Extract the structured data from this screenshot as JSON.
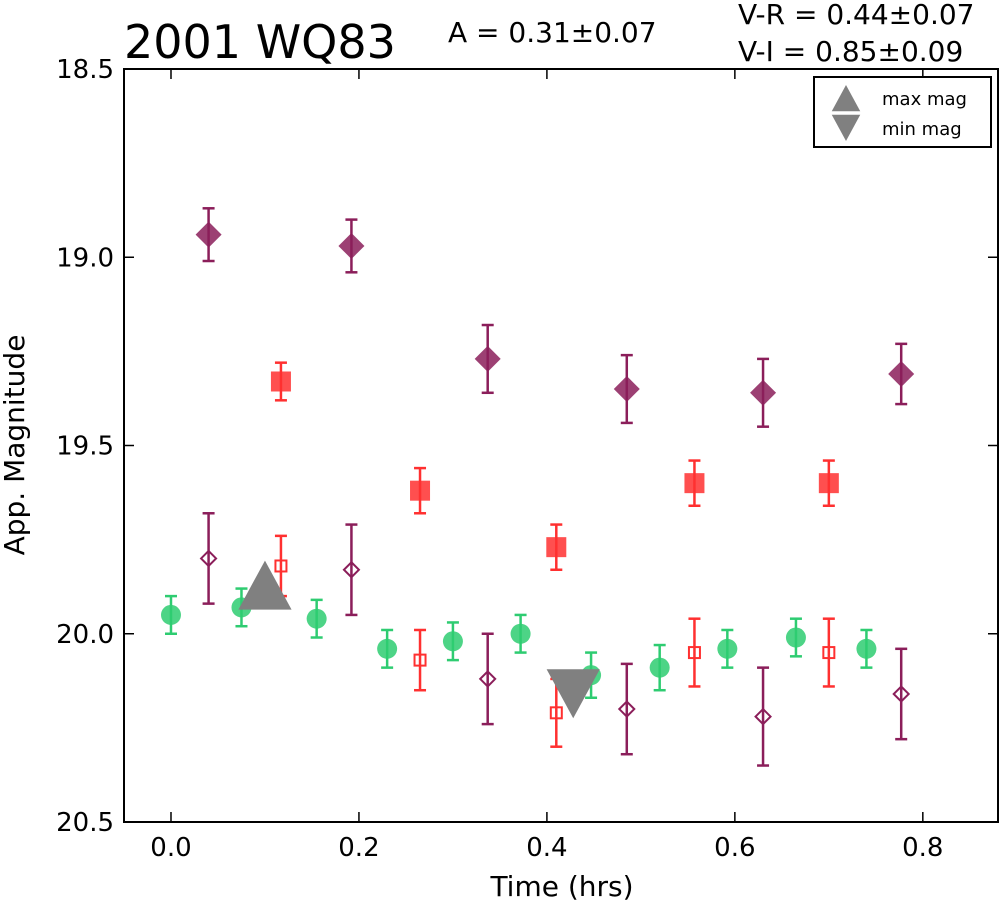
{
  "chart_data": {
    "type": "scatter",
    "title": "2001 WQ83",
    "annotations": {
      "amplitude": "A  = 0.31±0.07",
      "v_r": "V-R = 0.44±0.07",
      "v_i": "V-I  = 0.85±0.09"
    },
    "xlabel": "Time (hrs)",
    "ylabel": "App. Magnitude",
    "xlim": [
      -0.05,
      0.88
    ],
    "ylim": [
      18.5,
      20.5
    ],
    "y_inverted": true,
    "x_ticks": [
      "0.0",
      "0.2",
      "0.4",
      "0.6",
      "0.8"
    ],
    "x_tick_values": [
      0.0,
      0.2,
      0.4,
      0.6,
      0.8
    ],
    "y_ticks": [
      "18.5",
      "19.0",
      "19.5",
      "20.0",
      "20.5"
    ],
    "y_tick_values": [
      18.5,
      19.0,
      19.5,
      20.0,
      20.5
    ],
    "legend": {
      "placement": "top-right",
      "entries": [
        {
          "label": "max mag",
          "marker": "triangle-up",
          "color": "#808080"
        },
        {
          "label": "min mag",
          "marker": "triangle-down",
          "color": "#808080"
        }
      ]
    },
    "series": [
      {
        "marker": "circle",
        "filled": true,
        "color": "#2ecc71",
        "points": [
          {
            "x": 0.0,
            "y": 19.95,
            "err": 0.05
          },
          {
            "x": 0.075,
            "y": 19.93,
            "err": 0.05
          },
          {
            "x": 0.155,
            "y": 19.96,
            "err": 0.05
          },
          {
            "x": 0.23,
            "y": 20.04,
            "err": 0.05
          },
          {
            "x": 0.3,
            "y": 20.02,
            "err": 0.05
          },
          {
            "x": 0.372,
            "y": 20.0,
            "err": 0.05
          },
          {
            "x": 0.447,
            "y": 20.11,
            "err": 0.06
          },
          {
            "x": 0.52,
            "y": 20.09,
            "err": 0.06
          },
          {
            "x": 0.592,
            "y": 20.04,
            "err": 0.05
          },
          {
            "x": 0.665,
            "y": 20.01,
            "err": 0.05
          },
          {
            "x": 0.74,
            "y": 20.04,
            "err": 0.05
          }
        ]
      },
      {
        "marker": "square",
        "filled": true,
        "color": "#ff3030",
        "points": [
          {
            "x": 0.117,
            "y": 19.33,
            "err": 0.05
          },
          {
            "x": 0.265,
            "y": 19.62,
            "err": 0.06
          },
          {
            "x": 0.41,
            "y": 19.77,
            "err": 0.06
          },
          {
            "x": 0.557,
            "y": 19.6,
            "err": 0.06
          },
          {
            "x": 0.7,
            "y": 19.6,
            "err": 0.06
          }
        ]
      },
      {
        "marker": "diamond",
        "filled": true,
        "color": "#8b1e5a",
        "points": [
          {
            "x": 0.04,
            "y": 18.94,
            "err": 0.07
          },
          {
            "x": 0.192,
            "y": 18.97,
            "err": 0.07
          },
          {
            "x": 0.337,
            "y": 19.27,
            "err": 0.09
          },
          {
            "x": 0.485,
            "y": 19.35,
            "err": 0.09
          },
          {
            "x": 0.63,
            "y": 19.36,
            "err": 0.09
          },
          {
            "x": 0.777,
            "y": 19.31,
            "err": 0.08
          }
        ]
      },
      {
        "marker": "square",
        "filled": false,
        "color": "#ff3030",
        "points": [
          {
            "x": 0.117,
            "y": 19.82,
            "err": 0.08
          },
          {
            "x": 0.265,
            "y": 20.07,
            "err": 0.08
          },
          {
            "x": 0.41,
            "y": 20.21,
            "err": 0.09
          },
          {
            "x": 0.557,
            "y": 20.05,
            "err": 0.09
          },
          {
            "x": 0.7,
            "y": 20.05,
            "err": 0.09
          }
        ]
      },
      {
        "marker": "diamond",
        "filled": false,
        "color": "#8b1e5a",
        "points": [
          {
            "x": 0.04,
            "y": 19.8,
            "err": 0.12
          },
          {
            "x": 0.192,
            "y": 19.83,
            "err": 0.12
          },
          {
            "x": 0.337,
            "y": 20.12,
            "err": 0.12
          },
          {
            "x": 0.485,
            "y": 20.2,
            "err": 0.12
          },
          {
            "x": 0.63,
            "y": 20.22,
            "err": 0.13
          },
          {
            "x": 0.777,
            "y": 20.16,
            "err": 0.12
          }
        ]
      }
    ],
    "extrema": [
      {
        "label": "max mag",
        "marker": "triangle-up",
        "color": "#808080",
        "x": 0.1,
        "y": 19.88
      },
      {
        "label": "min mag",
        "marker": "triangle-down",
        "color": "#808080",
        "x": 0.428,
        "y": 20.15
      }
    ]
  }
}
